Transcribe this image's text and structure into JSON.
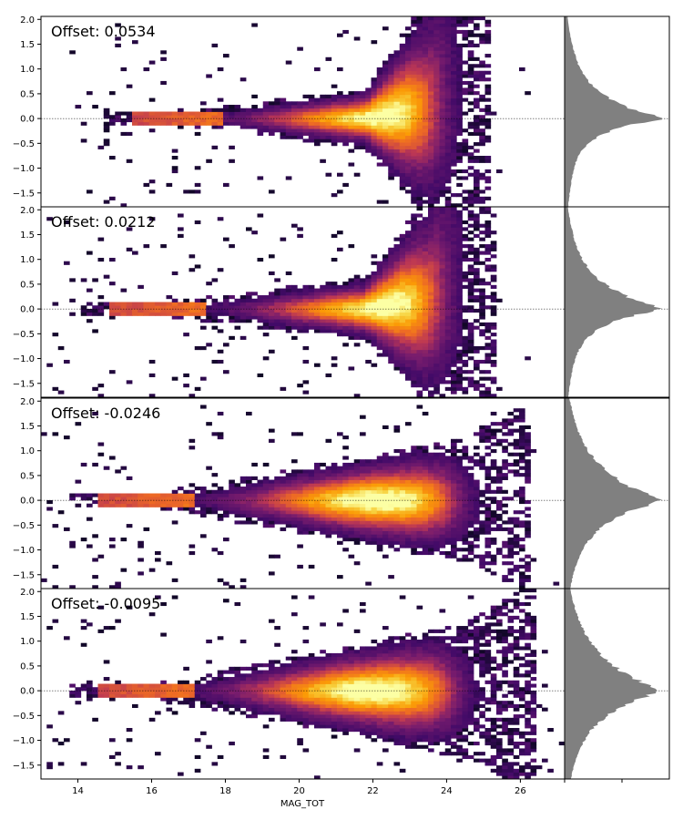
{
  "chart_data": [
    {
      "type": "heatmap",
      "title": "",
      "annotation": "Offset: 0.0534",
      "x_range": [
        13,
        27.2
      ],
      "y_range": [
        -1.78,
        2.06
      ],
      "reference_line_y": 0,
      "colormap": "inferno",
      "core": {
        "tail_start": 15.5,
        "tail_halfwidth": 0.06,
        "widening": 0.036,
        "upturn_start": 21.8,
        "upturn_scale": 0.34,
        "peak_x": 22.5,
        "cut_x": 23.6,
        "rise_x": 23.5,
        "faint_limit": 25.2
      },
      "histogram": {
        "peak_y": 0.0,
        "sigma_up": 0.55,
        "sigma_down": 0.35
      },
      "seed": 11
    },
    {
      "type": "heatmap",
      "title": "",
      "annotation": "Offset: 0.0212",
      "x_range": [
        13,
        27.2
      ],
      "y_range": [
        -1.78,
        2.06
      ],
      "reference_line_y": 0,
      "colormap": "inferno",
      "core": {
        "tail_start": 14.9,
        "tail_halfwidth": 0.06,
        "widening": 0.034,
        "upturn_start": 21.8,
        "upturn_scale": 0.3,
        "peak_x": 22.6,
        "cut_x": 23.7,
        "rise_x": 23.5,
        "faint_limit": 25.4
      },
      "histogram": {
        "peak_y": 0.0,
        "sigma_up": 0.6,
        "sigma_down": 0.4
      },
      "seed": 23
    },
    {
      "type": "heatmap",
      "title": "",
      "annotation": "Offset: -0.0246",
      "x_range": [
        13,
        27.2
      ],
      "y_range": [
        -1.78,
        2.06
      ],
      "reference_line_y": 0,
      "colormap": "inferno",
      "core": {
        "tail_start": 14.6,
        "tail_halfwidth": 0.06,
        "widening": 0.05,
        "upturn_start": 24.5,
        "upturn_scale": 0.1,
        "peak_x": 22.2,
        "cut_x": 24.2,
        "rise_x": 30,
        "faint_limit": 26.3
      },
      "histogram": {
        "peak_y": 0.0,
        "sigma_up": 0.75,
        "sigma_down": 0.6
      },
      "seed": 37
    },
    {
      "type": "heatmap",
      "title": "",
      "annotation": "Offset: -0.0095",
      "x_range": [
        13,
        27.2
      ],
      "y_range": [
        -1.78,
        2.06
      ],
      "reference_line_y": 0,
      "colormap": "inferno",
      "core": {
        "tail_start": 14.6,
        "tail_halfwidth": 0.06,
        "widening": 0.055,
        "upturn_start": 24.5,
        "upturn_scale": 0.1,
        "peak_x": 22.0,
        "cut_x": 24.2,
        "rise_x": 30,
        "faint_limit": 26.5
      },
      "histogram": {
        "peak_y": 0.0,
        "sigma_up": 0.8,
        "sigma_down": 0.65
      },
      "seed": 53
    }
  ],
  "axes": {
    "xlabel": "MAG_TOT",
    "x_ticks": [
      14,
      16,
      18,
      20,
      22,
      24,
      26
    ],
    "y_ticks": [
      -1.5,
      -1.0,
      -0.5,
      0.0,
      0.5,
      1.0,
      1.5,
      2.0
    ],
    "y_tick_labels": [
      "−1.5",
      "−1.0",
      "−0.5",
      "0.0",
      "0.5",
      "1.0",
      "1.5",
      "2.0"
    ]
  },
  "colors": {
    "histogram_fill": "#808080",
    "reference_line": "#000000"
  }
}
